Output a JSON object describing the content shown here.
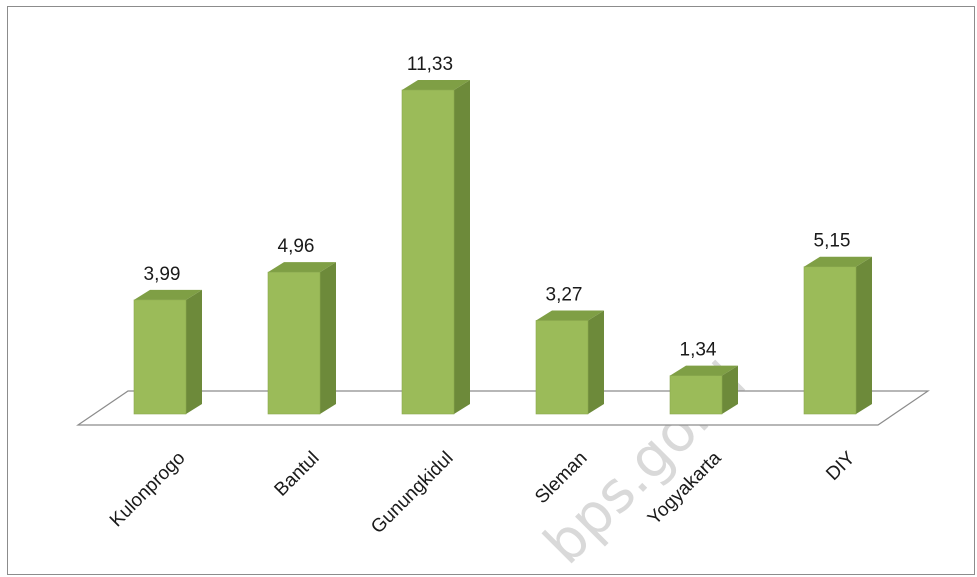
{
  "chart_data": {
    "type": "bar",
    "categories": [
      "Kulonprogo",
      "Bantul",
      "Gunungkidul",
      "Sleman",
      "Yogyakarta",
      "DIY"
    ],
    "values": [
      3.99,
      4.96,
      11.33,
      3.27,
      1.34,
      5.15
    ],
    "value_labels": [
      "3,99",
      "4,96",
      "11,33",
      "3,27",
      "1,34",
      "5,15"
    ],
    "style": "3d-column",
    "legend": "none",
    "grid": false,
    "bar_color": "#9bbb59",
    "bar_side_color": "#6d8a3a",
    "bar_top_color": "#7f9f45"
  },
  "watermark": "bps.go.id"
}
